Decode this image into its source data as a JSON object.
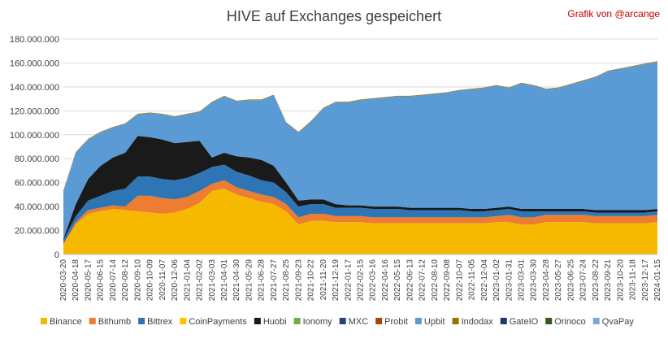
{
  "chart_data": {
    "type": "area",
    "title": "HIVE auf Exchanges gespeichert",
    "annotation": "Grafik von @arcange",
    "ylim": [
      0,
      180000000
    ],
    "yticks": [
      "0",
      "20.000.000",
      "40.000.000",
      "60.000.000",
      "80.000.000",
      "100.000.000",
      "120.000.000",
      "140.000.000",
      "160.000.000",
      "180.000.000"
    ],
    "grid": true,
    "legend": "bottom",
    "x": [
      "2020-03-20",
      "2020-04-18",
      "2020-05-17",
      "2020-06-15",
      "2020-07-14",
      "2020-08-12",
      "2020-09-10",
      "2020-10-09",
      "2020-11-07",
      "2020-12-06",
      "2021-01-04",
      "2021-02-02",
      "2021-03-03",
      "2021-04-01",
      "2021-04-30",
      "2021-05-29",
      "2021-06-28",
      "2021-07-27",
      "2021-08-25",
      "2021-09-23",
      "2021-10-22",
      "2021-11-20",
      "2021-12-19",
      "2022-01-17",
      "2022-02-15",
      "2022-03-16",
      "2022-04-16",
      "2022-05-15",
      "2022-06-13",
      "2022-07-12",
      "2022-08-10",
      "2022-09-08",
      "2022-10-07",
      "2022-11-05",
      "2022-12-04",
      "2023-01-02",
      "2023-01-31",
      "2023-03-01",
      "2023-03-30",
      "2023-04-28",
      "2023-05-27",
      "2023-06-25",
      "2023-07-24",
      "2023-08-22",
      "2023-09-21",
      "2023-10-20",
      "2023-11-18",
      "2023-12-17",
      "2024-01-15"
    ],
    "series": [
      {
        "name": "Binance",
        "color": "#f7b900",
        "values": [
          8000000,
          25000000,
          34000000,
          36000000,
          38000000,
          37000000,
          36000000,
          35000000,
          34000000,
          35000000,
          38000000,
          43000000,
          53000000,
          55000000,
          50000000,
          47000000,
          44000000,
          42000000,
          36000000,
          25000000,
          28000000,
          28000000,
          27000000,
          27000000,
          27000000,
          26000000,
          26000000,
          26000000,
          26000000,
          26000000,
          26000000,
          26000000,
          26000000,
          26000000,
          26000000,
          27000000,
          27000000,
          25000000,
          25000000,
          27000000,
          27000000,
          27000000,
          27000000,
          26000000,
          26000000,
          26000000,
          26000000,
          26000000,
          27000000
        ]
      },
      {
        "name": "Bithumb",
        "color": "#ed7d31",
        "values": [
          1000000,
          2000000,
          3000000,
          3000000,
          3000000,
          3000000,
          13000000,
          14000000,
          13000000,
          11000000,
          10000000,
          10000000,
          6000000,
          7000000,
          6000000,
          6000000,
          6000000,
          6000000,
          6000000,
          6000000,
          6000000,
          6000000,
          5000000,
          5000000,
          5000000,
          5000000,
          5000000,
          5000000,
          5000000,
          5000000,
          5000000,
          5000000,
          5000000,
          5000000,
          5000000,
          5000000,
          6000000,
          6000000,
          6000000,
          6000000,
          6000000,
          6000000,
          6000000,
          6000000,
          6000000,
          6000000,
          6000000,
          6000000,
          6000000
        ]
      },
      {
        "name": "Bittrex",
        "color": "#2e75b6",
        "values": [
          3000000,
          5000000,
          8000000,
          10000000,
          12000000,
          15000000,
          16000000,
          16000000,
          16000000,
          16000000,
          16000000,
          15000000,
          14000000,
          13000000,
          13000000,
          13000000,
          12000000,
          12000000,
          10000000,
          9000000,
          8000000,
          8000000,
          7000000,
          7000000,
          7000000,
          7000000,
          7000000,
          7000000,
          6000000,
          6000000,
          6000000,
          6000000,
          6000000,
          5000000,
          5000000,
          5000000,
          5000000,
          5000000,
          5000000,
          3000000,
          3000000,
          3000000,
          3000000,
          3000000,
          3000000,
          3000000,
          3000000,
          3000000,
          3000000
        ]
      },
      {
        "name": "CoinPayments",
        "color": "#ffc000",
        "values": [
          0,
          0,
          0,
          0,
          0,
          0,
          0,
          0,
          0,
          0,
          0,
          0,
          0,
          0,
          0,
          0,
          0,
          0,
          0,
          0,
          0,
          0,
          0,
          0,
          0,
          0,
          0,
          0,
          0,
          0,
          0,
          0,
          0,
          0,
          0,
          0,
          0,
          0,
          0,
          0,
          0,
          0,
          0,
          0,
          0,
          0,
          0,
          0,
          0
        ]
      },
      {
        "name": "Huobi",
        "color": "#1a1a1a",
        "values": [
          1000000,
          10000000,
          18000000,
          25000000,
          28000000,
          30000000,
          34000000,
          33000000,
          33000000,
          31000000,
          30000000,
          27000000,
          8000000,
          10000000,
          13000000,
          15000000,
          17000000,
          14000000,
          8000000,
          5000000,
          4000000,
          4000000,
          3000000,
          2000000,
          2000000,
          2000000,
          2000000,
          2000000,
          2000000,
          2000000,
          2000000,
          2000000,
          2000000,
          2000000,
          2000000,
          2000000,
          2000000,
          2000000,
          2000000,
          2000000,
          2000000,
          2000000,
          2000000,
          2000000,
          2000000,
          2000000,
          2000000,
          2000000,
          2000000
        ]
      },
      {
        "name": "Ionomy",
        "color": "#70ad47",
        "values": [
          0,
          0,
          0,
          0,
          0,
          0,
          0,
          0,
          0,
          0,
          0,
          0,
          0,
          0,
          0,
          0,
          0,
          0,
          0,
          0,
          0,
          0,
          0,
          0,
          0,
          0,
          0,
          0,
          0,
          0,
          0,
          0,
          0,
          0,
          0,
          0,
          0,
          0,
          0,
          0,
          0,
          0,
          0,
          0,
          0,
          0,
          0,
          0,
          0
        ]
      },
      {
        "name": "MXC",
        "color": "#264478",
        "values": [
          0,
          0,
          0,
          0,
          0,
          0,
          0,
          0,
          0,
          0,
          0,
          0,
          0,
          0,
          0,
          0,
          0,
          0,
          0,
          0,
          0,
          0,
          0,
          0,
          0,
          0,
          0,
          0,
          0,
          0,
          0,
          0,
          0,
          0,
          0,
          0,
          0,
          0,
          0,
          0,
          0,
          0,
          0,
          0,
          0,
          0,
          0,
          0,
          0
        ]
      },
      {
        "name": "Probit",
        "color": "#9e480e",
        "values": [
          0,
          0,
          0,
          0,
          0,
          0,
          0,
          0,
          0,
          0,
          0,
          0,
          0,
          0,
          0,
          0,
          0,
          0,
          0,
          0,
          0,
          0,
          0,
          0,
          0,
          0,
          0,
          0,
          0,
          0,
          0,
          0,
          0,
          0,
          0,
          0,
          0,
          0,
          0,
          0,
          0,
          0,
          0,
          0,
          0,
          0,
          0,
          0,
          0
        ]
      },
      {
        "name": "Upbit",
        "color": "#5b9bd5",
        "values": [
          40000000,
          43000000,
          33000000,
          28000000,
          25000000,
          24000000,
          18000000,
          20000000,
          21000000,
          22000000,
          23000000,
          24000000,
          46000000,
          47000000,
          46000000,
          48000000,
          50000000,
          59000000,
          50000000,
          57000000,
          65000000,
          76000000,
          85000000,
          86000000,
          88000000,
          90000000,
          91000000,
          92000000,
          93000000,
          94000000,
          95000000,
          96000000,
          98000000,
          100000000,
          101000000,
          102000000,
          99000000,
          105000000,
          103000000,
          100000000,
          101000000,
          104000000,
          107000000,
          111000000,
          116000000,
          118000000,
          120000000,
          122000000,
          123000000
        ]
      },
      {
        "name": "Indodax",
        "color": "#997300",
        "values": [
          500000,
          500000,
          500000,
          500000,
          500000,
          500000,
          500000,
          500000,
          500000,
          500000,
          500000,
          500000,
          500000,
          500000,
          500000,
          500000,
          500000,
          500000,
          500000,
          500000,
          500000,
          500000,
          500000,
          500000,
          500000,
          500000,
          500000,
          500000,
          500000,
          500000,
          500000,
          500000,
          500000,
          500000,
          500000,
          500000,
          500000,
          500000,
          500000,
          500000,
          500000,
          500000,
          500000,
          500000,
          500000,
          500000,
          500000,
          500000,
          500000
        ]
      },
      {
        "name": "GateIO",
        "color": "#203864",
        "values": [
          0,
          0,
          0,
          0,
          0,
          0,
          0,
          0,
          0,
          0,
          0,
          0,
          0,
          0,
          0,
          0,
          0,
          0,
          0,
          0,
          0,
          0,
          0,
          0,
          0,
          0,
          0,
          0,
          0,
          0,
          0,
          0,
          0,
          0,
          0,
          0,
          0,
          0,
          0,
          0,
          0,
          0,
          0,
          0,
          0,
          0,
          0,
          0,
          0
        ]
      },
      {
        "name": "Orinoco",
        "color": "#375623",
        "values": [
          0,
          0,
          0,
          0,
          0,
          0,
          0,
          0,
          0,
          0,
          0,
          0,
          0,
          0,
          0,
          0,
          0,
          0,
          0,
          0,
          0,
          0,
          0,
          0,
          0,
          0,
          0,
          0,
          0,
          0,
          0,
          0,
          0,
          0,
          0,
          0,
          0,
          0,
          0,
          0,
          0,
          0,
          0,
          0,
          0,
          0,
          0,
          0,
          0
        ]
      },
      {
        "name": "QvaPay",
        "color": "#7fa7d6",
        "values": [
          0,
          0,
          0,
          0,
          0,
          0,
          0,
          0,
          0,
          0,
          0,
          0,
          0,
          0,
          0,
          0,
          0,
          0,
          0,
          0,
          0,
          0,
          0,
          0,
          0,
          0,
          0,
          0,
          0,
          0,
          0,
          0,
          0,
          0,
          0,
          0,
          0,
          0,
          0,
          0,
          0,
          0,
          0,
          0,
          0,
          0,
          0,
          0,
          0
        ]
      }
    ]
  }
}
